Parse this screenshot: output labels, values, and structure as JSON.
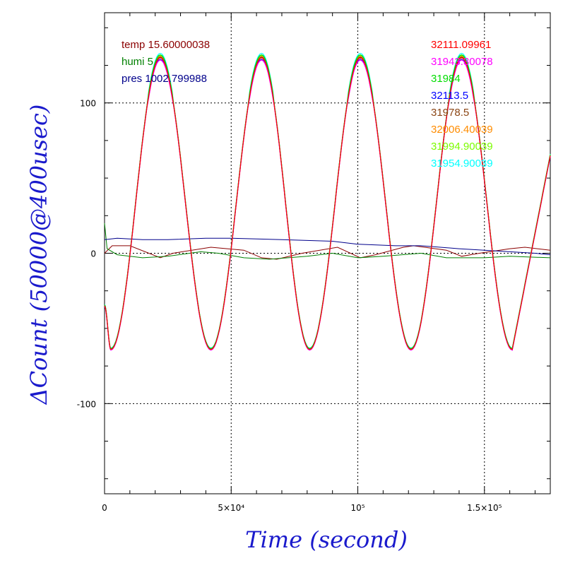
{
  "chart_data": {
    "type": "line",
    "xlabel": "Time (second)",
    "ylabel": "ΔCount (50000@400usec)",
    "xlim": [
      0,
      176000
    ],
    "ylim": [
      -160,
      160
    ],
    "x_ticks": [
      {
        "value": 0,
        "label": "0"
      },
      {
        "value": 50000,
        "label": "5×10⁴"
      },
      {
        "value": 100000,
        "label": "10⁵"
      },
      {
        "value": 150000,
        "label": "1.5×10⁵"
      }
    ],
    "y_ticks": [
      {
        "value": 100,
        "label": "100"
      },
      {
        "value": 0,
        "label": "0"
      },
      {
        "value": -100,
        "label": "-100"
      }
    ],
    "grid": true,
    "legend_left": [
      {
        "label": "temp 15.60000038",
        "color": "#8b0000"
      },
      {
        "label": "humi 5",
        "color": "#008000"
      },
      {
        "label": "pres 1002.799988",
        "color": "#00008b"
      }
    ],
    "legend_right": [
      {
        "label": "32111.09961",
        "color": "#ff0000"
      },
      {
        "label": "31943.30078",
        "color": "#ff00ff"
      },
      {
        "label": "31984",
        "color": "#00dd00"
      },
      {
        "label": "32113.5",
        "color": "#0000ff"
      },
      {
        "label": "31978.5",
        "color": "#8b4513"
      },
      {
        "label": "32006.40039",
        "color": "#ff8c00"
      },
      {
        "label": "31994.90039",
        "color": "#7cfc00"
      },
      {
        "label": "31954.90039",
        "color": "#00ffff"
      }
    ],
    "counts_wave": {
      "description_points": "sinusoid-like oscillation of all count series",
      "peaks_x": [
        22000,
        62000,
        101000,
        141000
      ],
      "peak_y": 130,
      "troughs_x": [
        2500,
        42000,
        81000,
        121000,
        161000
      ],
      "trough_y": -64,
      "start_y": -35,
      "end_x": 176000,
      "end_y": 65,
      "series": [
        {
          "name": "32111.09961",
          "color": "#ff0000",
          "offset": 0
        },
        {
          "name": "31943.30078",
          "color": "#ff00ff",
          "offset": -1.5
        },
        {
          "name": "31984",
          "color": "#00dd00",
          "offset": 2
        },
        {
          "name": "32113.5",
          "color": "#0000ff",
          "offset": -1
        },
        {
          "name": "31978.5",
          "color": "#8b4513",
          "offset": 0.5
        },
        {
          "name": "32006.40039",
          "color": "#ff8c00",
          "offset": 1
        },
        {
          "name": "31994.90039",
          "color": "#7cfc00",
          "offset": 1.5
        },
        {
          "name": "31954.90039",
          "color": "#00ffff",
          "offset": 3
        }
      ]
    },
    "env_series": [
      {
        "name": "temp 15.60000038",
        "color": "#8b0000",
        "points": [
          [
            0,
            0
          ],
          [
            3000,
            5
          ],
          [
            10000,
            5
          ],
          [
            22000,
            -3
          ],
          [
            27000,
            0
          ],
          [
            42000,
            4
          ],
          [
            55000,
            2
          ],
          [
            62000,
            -3
          ],
          [
            68000,
            -4
          ],
          [
            78000,
            0
          ],
          [
            92000,
            4
          ],
          [
            101000,
            -3
          ],
          [
            107000,
            -1
          ],
          [
            118000,
            4
          ],
          [
            122000,
            5
          ],
          [
            135000,
            2
          ],
          [
            141000,
            -2
          ],
          [
            148000,
            0
          ],
          [
            160000,
            3
          ],
          [
            166000,
            4
          ],
          [
            176000,
            2
          ]
        ]
      },
      {
        "name": "humi 5",
        "color": "#008000",
        "points": [
          [
            0,
            20
          ],
          [
            1000,
            3
          ],
          [
            5000,
            -1
          ],
          [
            15000,
            -3
          ],
          [
            25000,
            -2
          ],
          [
            38000,
            1
          ],
          [
            45000,
            0
          ],
          [
            55000,
            -3
          ],
          [
            65000,
            -4
          ],
          [
            80000,
            -2
          ],
          [
            90000,
            0
          ],
          [
            100000,
            -3
          ],
          [
            110000,
            -2
          ],
          [
            125000,
            0
          ],
          [
            135000,
            -3
          ],
          [
            150000,
            -3
          ],
          [
            160000,
            -2
          ],
          [
            176000,
            -3
          ]
        ]
      },
      {
        "name": "pres 1002.799988",
        "color": "#00008b",
        "points": [
          [
            0,
            9
          ],
          [
            5000,
            10
          ],
          [
            15000,
            9
          ],
          [
            25000,
            9
          ],
          [
            40000,
            10
          ],
          [
            50000,
            10
          ],
          [
            70000,
            9
          ],
          [
            90000,
            8
          ],
          [
            100000,
            6
          ],
          [
            115000,
            5
          ],
          [
            125000,
            5
          ],
          [
            140000,
            3
          ],
          [
            150000,
            2
          ],
          [
            160000,
            1
          ],
          [
            170000,
            0
          ],
          [
            176000,
            -1
          ]
        ]
      }
    ]
  }
}
